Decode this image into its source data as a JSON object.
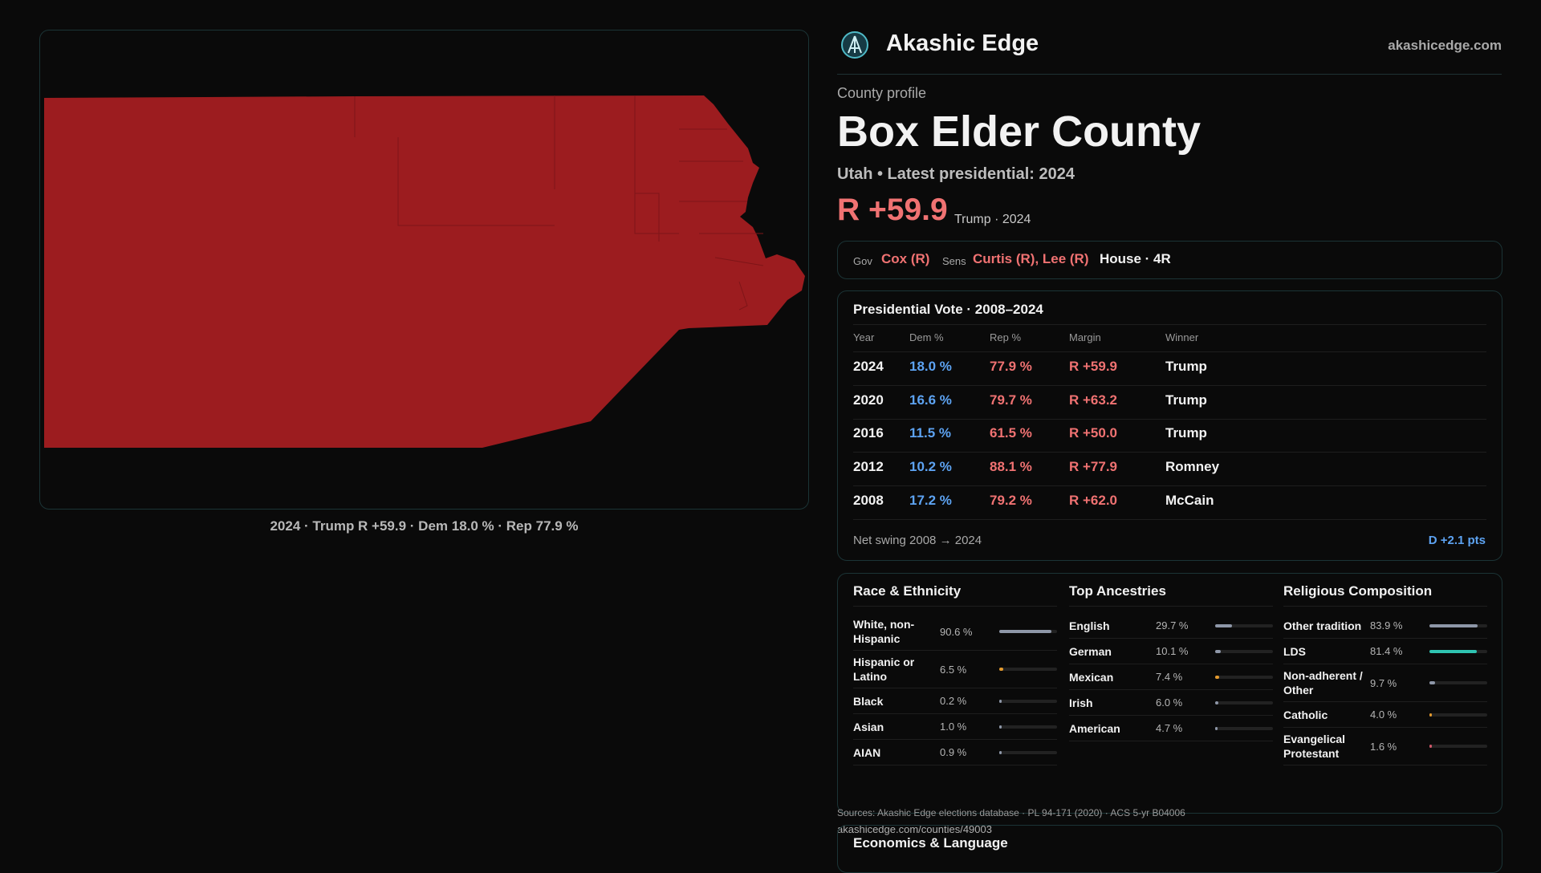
{
  "map": {
    "caption": "2024 · Trump R +59.9 · Dem 18.0 % · Rep 77.9 %"
  },
  "header": {
    "brand": "Akashic Edge",
    "site": "akashicedge.com"
  },
  "profile": {
    "kicker": "County profile",
    "title": "Box Elder County",
    "subtitle": "Utah • Latest presidential: 2024",
    "margin": "R +59.9",
    "margin_note": "Trump · 2024"
  },
  "officials": {
    "gov_label": "Gov",
    "gov": "Cox (R)",
    "sens_label": "Sens",
    "sens": "Curtis (R), Lee (R)",
    "house": "House · 4R"
  },
  "presidential": {
    "title": "Presidential Vote · 2008–2024",
    "columns": [
      "Year",
      "Dem %",
      "Rep %",
      "Margin",
      "Winner"
    ],
    "rows": [
      [
        "2024",
        "18.0 %",
        "77.9 %",
        "R +59.9",
        "Trump"
      ],
      [
        "2020",
        "16.6 %",
        "79.7 %",
        "R +63.2",
        "Trump"
      ],
      [
        "2016",
        "11.5 %",
        "61.5 %",
        "R +50.0",
        "Trump"
      ],
      [
        "2012",
        "10.2 %",
        "88.1 %",
        "R +77.9",
        "Romney"
      ],
      [
        "2008",
        "17.2 %",
        "79.2 %",
        "R +62.0",
        "McCain"
      ]
    ],
    "swing_label": "Net swing 2008 → 2024",
    "swing": "D +2.1 pts"
  },
  "demographics": [
    {
      "title": "Race & Ethnicity",
      "items": [
        {
          "name": "White, non-Hispanic",
          "value": 90.6,
          "label": "90.6 %",
          "color": "#8e97a8"
        },
        {
          "name": "Hispanic or Latino",
          "value": 6.5,
          "label": "6.5 %",
          "color": "#e39a2e"
        },
        {
          "name": "Black",
          "value": 0.2,
          "label": "0.2 %",
          "color": "#8e97a8"
        },
        {
          "name": "Asian",
          "value": 1.0,
          "label": "1.0 %",
          "color": "#8e97a8"
        },
        {
          "name": "AIAN",
          "value": 0.9,
          "label": "0.9 %",
          "color": "#8e97a8"
        }
      ]
    },
    {
      "title": "Top Ancestries",
      "items": [
        {
          "name": "English",
          "value": 29.7,
          "label": "29.7 %",
          "color": "#8e97a8"
        },
        {
          "name": "German",
          "value": 10.1,
          "label": "10.1 %",
          "color": "#8e97a8"
        },
        {
          "name": "Mexican",
          "value": 7.4,
          "label": "7.4 %",
          "color": "#e39a2e"
        },
        {
          "name": "Irish",
          "value": 6.0,
          "label": "6.0 %",
          "color": "#8e97a8"
        },
        {
          "name": "American",
          "value": 4.7,
          "label": "4.7 %",
          "color": "#8e97a8"
        }
      ]
    },
    {
      "title": "Religious Composition",
      "items": [
        {
          "name": "Other tradition",
          "value": 83.9,
          "label": "83.9 %",
          "color": "#8e97a8"
        },
        {
          "name": "LDS",
          "value": 81.4,
          "label": "81.4 %",
          "color": "#2fc4b2"
        },
        {
          "name": "Non-adherent / Other",
          "value": 9.7,
          "label": "9.7 %",
          "color": "#8e97a8"
        },
        {
          "name": "Catholic",
          "value": 4.0,
          "label": "4.0 %",
          "color": "#e39a2e"
        },
        {
          "name": "Evangelical Protestant",
          "value": 1.6,
          "label": "1.6 %",
          "color": "#d0586a"
        }
      ]
    }
  ],
  "sources": "Sources: Akashic Edge elections database · PL 94-171 (2020) · ACS 5-yr B04006",
  "url": "akashicedge.com/counties/49003",
  "economics": {
    "title": "Economics & Language"
  }
}
